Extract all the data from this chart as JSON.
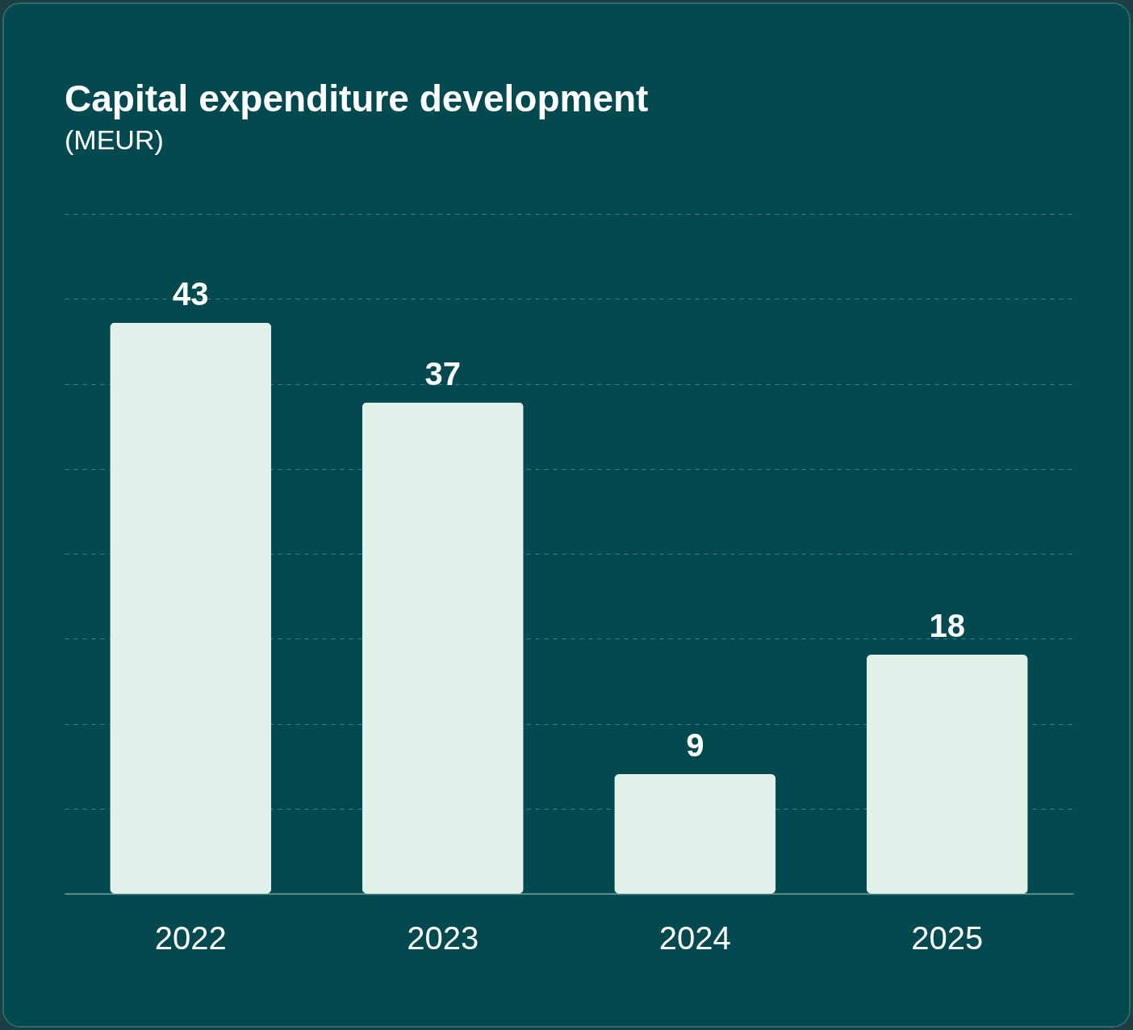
{
  "chart_data": {
    "type": "bar",
    "title": "Capital expenditure development",
    "subtitle": "(MEUR)",
    "categories": [
      "2022",
      "2023",
      "2024",
      "2025"
    ],
    "values": [
      43,
      37,
      9,
      18
    ],
    "color": "#e1f0e8",
    "data_labels": true,
    "ylim": [
      0,
      51.2
    ],
    "yticks": [
      {
        "value": 0,
        "label": null
      },
      {
        "value": 6.4,
        "label": null
      },
      {
        "value": 12.8,
        "label": null
      },
      {
        "value": 19.2,
        "label": null
      },
      {
        "value": 25.6,
        "label": null
      },
      {
        "value": 32,
        "label": null
      },
      {
        "value": 38.4,
        "label": null
      },
      {
        "value": 44.8,
        "label": null
      },
      {
        "value": 51.2,
        "label": null
      }
    ],
    "grid": "y",
    "tick_labels": "x"
  }
}
